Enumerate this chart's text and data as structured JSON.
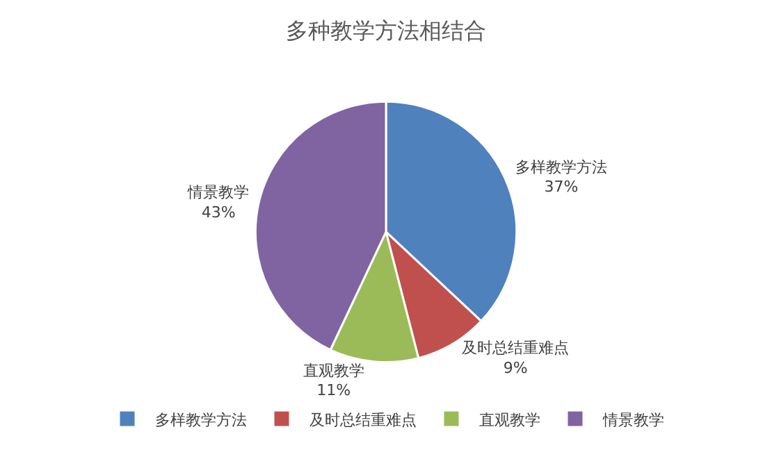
{
  "chart_data": {
    "type": "pie",
    "title": "多种教学方法相结合",
    "categories": [
      "多样教学方法",
      "及时总结重难点",
      "直观教学",
      "情景教学"
    ],
    "values": [
      37,
      9,
      11,
      43
    ],
    "colors": [
      "#4f81bd",
      "#c0504d",
      "#9bbb59",
      "#8064a2"
    ],
    "value_labels": [
      "37%",
      "9%",
      "11%",
      "43%"
    ],
    "legend": "bottom"
  }
}
